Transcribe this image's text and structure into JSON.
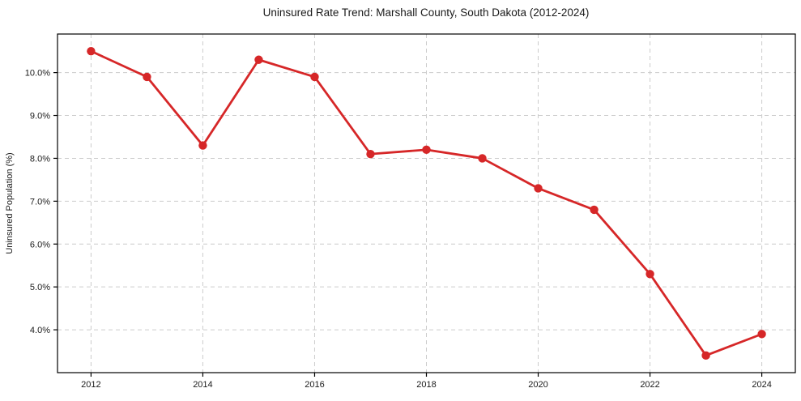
{
  "figure": {
    "background": "#ffffff"
  },
  "chart_data": {
    "type": "line",
    "title": "Uninsured Rate Trend: Marshall County, South Dakota (2012-2024)",
    "xlabel": "",
    "ylabel": "Uninsured Population (%)",
    "x": [
      2012,
      2013,
      2014,
      2015,
      2016,
      2017,
      2018,
      2019,
      2020,
      2021,
      2022,
      2023,
      2024
    ],
    "values": [
      10.5,
      9.9,
      8.3,
      10.3,
      9.9,
      8.1,
      8.2,
      8.0,
      7.3,
      6.8,
      5.3,
      3.4,
      3.9
    ],
    "x_ticks": [
      2012,
      2014,
      2016,
      2018,
      2020,
      2022,
      2024
    ],
    "y_ticks": [
      4.0,
      5.0,
      6.0,
      7.0,
      8.0,
      9.0,
      10.0
    ],
    "y_tick_suffix": "%",
    "xlim": [
      2011.4,
      2024.6
    ],
    "ylim": [
      3.0,
      10.9
    ],
    "grid": true,
    "legend": "none",
    "line_color": "#d62728",
    "marker": "circle",
    "grid_color": "#cccccc",
    "spine_color": "#000000"
  }
}
